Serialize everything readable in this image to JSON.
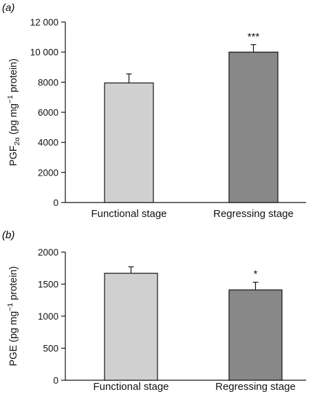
{
  "chart_data": [
    {
      "type": "bar",
      "panel_label": "(a)",
      "ylabel": "PGF2α (pg mg−1 protein)",
      "categories": [
        "Functional stage",
        "Regressing stage"
      ],
      "values": [
        7950,
        10000
      ],
      "error": [
        600,
        500
      ],
      "significance": [
        "",
        "***"
      ],
      "ylim": [
        0,
        12000
      ],
      "yticks": [
        0,
        2000,
        4000,
        6000,
        8000,
        10000,
        12000
      ],
      "ytick_labels": [
        "0",
        "2000",
        "4000",
        "6000",
        "8000",
        "10 000",
        "12 000"
      ],
      "colors": [
        "#d0d0d0",
        "#888888"
      ]
    },
    {
      "type": "bar",
      "panel_label": "(b)",
      "ylabel": "PGE (pg mg−1 protein)",
      "categories": [
        "Functional stage",
        "Regressing stage"
      ],
      "values": [
        1670,
        1410
      ],
      "error": [
        100,
        120
      ],
      "significance": [
        "",
        "*"
      ],
      "ylim": [
        0,
        2000
      ],
      "yticks": [
        0,
        500,
        1000,
        1500,
        2000
      ],
      "ytick_labels": [
        "0",
        "500",
        "1000",
        "1500",
        "2000"
      ],
      "colors": [
        "#d0d0d0",
        "#888888"
      ]
    }
  ]
}
